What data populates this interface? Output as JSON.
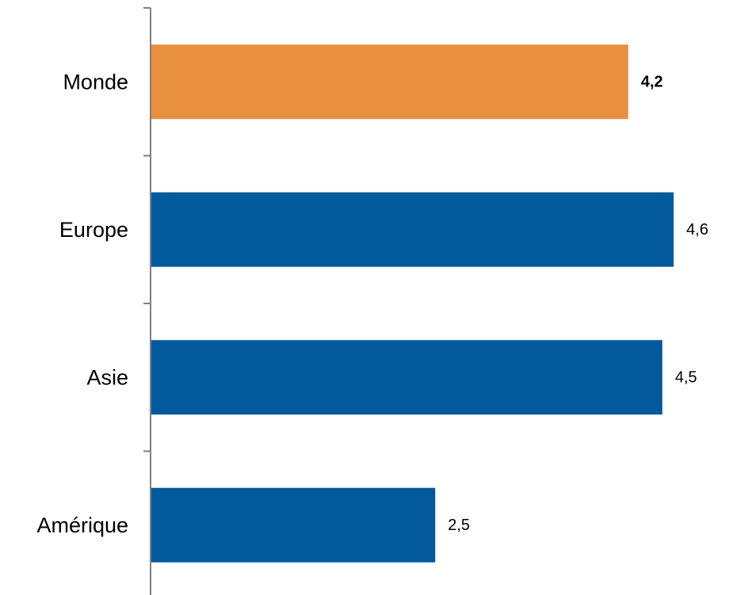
{
  "chart_data": {
    "type": "bar",
    "orientation": "horizontal",
    "categories": [
      "Monde",
      "Europe",
      "Asie",
      "Amérique"
    ],
    "values": [
      4.2,
      4.6,
      4.5,
      2.5
    ],
    "value_labels": [
      "4,2",
      "4,6",
      "4,5",
      "2,5"
    ],
    "bold_labels": [
      true,
      false,
      false,
      false
    ],
    "colors": [
      "#E8903F",
      "#005A9C",
      "#005A9C",
      "#005A9C"
    ],
    "title": "",
    "xlabel": "",
    "ylabel": "",
    "xlim": [
      0,
      5.0
    ],
    "grid": false,
    "legend": "none"
  }
}
